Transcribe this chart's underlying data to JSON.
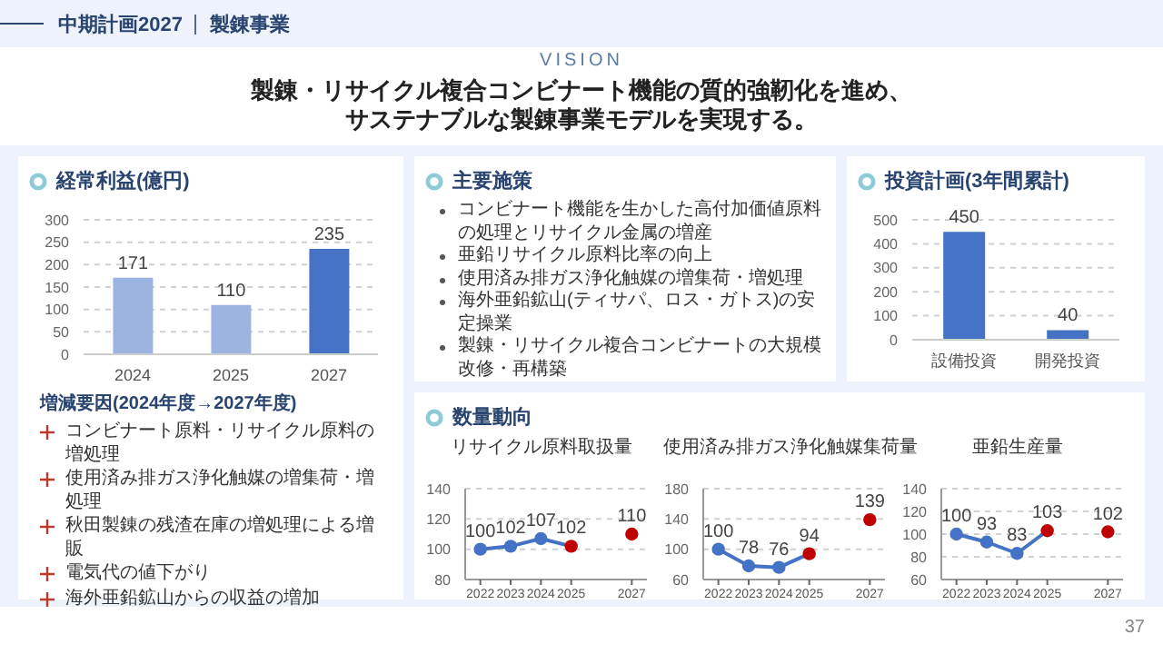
{
  "chart_data": [
    {
      "type": "other",
      "title": "中期計画2027",
      "subtitle": "製錬事業",
      "annotations": [
        "VISION",
        "製錬・リサイクル複合コンビナート機能の質的強靭化を進め、",
        "サステナブルな製錬事業モデルを実現する。",
        "37"
      ]
    },
    {
      "type": "bar",
      "title": "経常利益(億円)",
      "categories": [
        "2024",
        "2025",
        "2027"
      ],
      "values": [
        171,
        110,
        235
      ],
      "colors": [
        "#9db3e0",
        "#9db3e0",
        "#4472c4"
      ],
      "ylim": [
        0,
        300
      ],
      "yticks": [
        0,
        50,
        100,
        150,
        200,
        250,
        300
      ],
      "grid": "y",
      "data_labels": true,
      "annotations": [
        "増減要因(2024年度→2027年度)",
        "コンビナート原料・リサイクル原料の増処理",
        "使用済み排ガス浄化触媒の増集荷・増処理",
        "秋田製錬の残渣在庫の増処理による増販",
        "電気代の値下がり",
        "海外亜鉛鉱山からの収益の増加"
      ]
    },
    {
      "type": "other",
      "title": "主要施策",
      "annotations": [
        "コンビナート機能を生かした高付加価値原料の処理とリサイクル金属の増産",
        "亜鉛リサイクル原料比率の向上",
        "使用済み排ガス浄化触媒の増集荷・増処理",
        "海外亜鉛鉱山(ティサパ、ロス・ガトス)の安定操業",
        "製錬・リサイクル複合コンビナートの大規模改修・再構築"
      ]
    },
    {
      "type": "bar",
      "title": "投資計画(3年間累計)",
      "categories": [
        "設備投資",
        "開発投資"
      ],
      "values": [
        450,
        40
      ],
      "colors": [
        "#4472c4",
        "#4472c4"
      ],
      "ylim": [
        0,
        500
      ],
      "yticks": [
        0,
        100,
        200,
        300,
        400,
        500
      ],
      "grid": "y",
      "data_labels": true
    },
    {
      "type": "other",
      "title": "数量動向"
    },
    {
      "type": "line",
      "title": "リサイクル原料取扱量",
      "xlim": [
        2021.5,
        2027.5
      ],
      "xticks": [
        2022,
        2023,
        2024,
        2025,
        2027
      ],
      "ylim": [
        80,
        140
      ],
      "yticks": [
        80,
        100,
        120,
        140
      ],
      "grid": "y",
      "marker": "circle",
      "data_labels": true,
      "series": [
        {
          "type": "line",
          "color": "#4472c4",
          "x": [
            2022,
            2023,
            2024,
            2025
          ],
          "values": [
            100,
            102,
            107,
            102
          ],
          "colors": [
            "#4472c4",
            "#4472c4",
            "#4472c4",
            "#c00000"
          ]
        },
        {
          "type": "scatter",
          "color": "#c00000",
          "x": [
            2027
          ],
          "values": [
            110
          ]
        }
      ]
    },
    {
      "type": "line",
      "title": "使用済み排ガス浄化触媒集荷量",
      "xlim": [
        2021.5,
        2027.5
      ],
      "xticks": [
        2022,
        2023,
        2024,
        2025,
        2027
      ],
      "ylim": [
        60,
        180
      ],
      "yticks": [
        60,
        100,
        140,
        180
      ],
      "grid": "y",
      "marker": "circle",
      "data_labels": true,
      "series": [
        {
          "type": "line",
          "color": "#4472c4",
          "x": [
            2022,
            2023,
            2024,
            2025
          ],
          "values": [
            100,
            78,
            76,
            94
          ],
          "colors": [
            "#4472c4",
            "#4472c4",
            "#4472c4",
            "#c00000"
          ]
        },
        {
          "type": "scatter",
          "color": "#c00000",
          "x": [
            2027
          ],
          "values": [
            139
          ]
        }
      ]
    },
    {
      "type": "line",
      "title": "亜鉛生産量",
      "xlim": [
        2021.5,
        2027.5
      ],
      "xticks": [
        2022,
        2023,
        2024,
        2025,
        2027
      ],
      "ylim": [
        60,
        140
      ],
      "yticks": [
        60,
        80,
        100,
        120,
        140
      ],
      "grid": "y",
      "marker": "circle",
      "data_labels": true,
      "series": [
        {
          "type": "line",
          "color": "#4472c4",
          "x": [
            2022,
            2023,
            2024,
            2025
          ],
          "values": [
            100,
            93,
            83,
            103
          ],
          "colors": [
            "#4472c4",
            "#4472c4",
            "#4472c4",
            "#c00000"
          ]
        },
        {
          "type": "scatter",
          "color": "#c00000",
          "x": [
            2027
          ],
          "values": [
            102
          ]
        }
      ]
    }
  ]
}
